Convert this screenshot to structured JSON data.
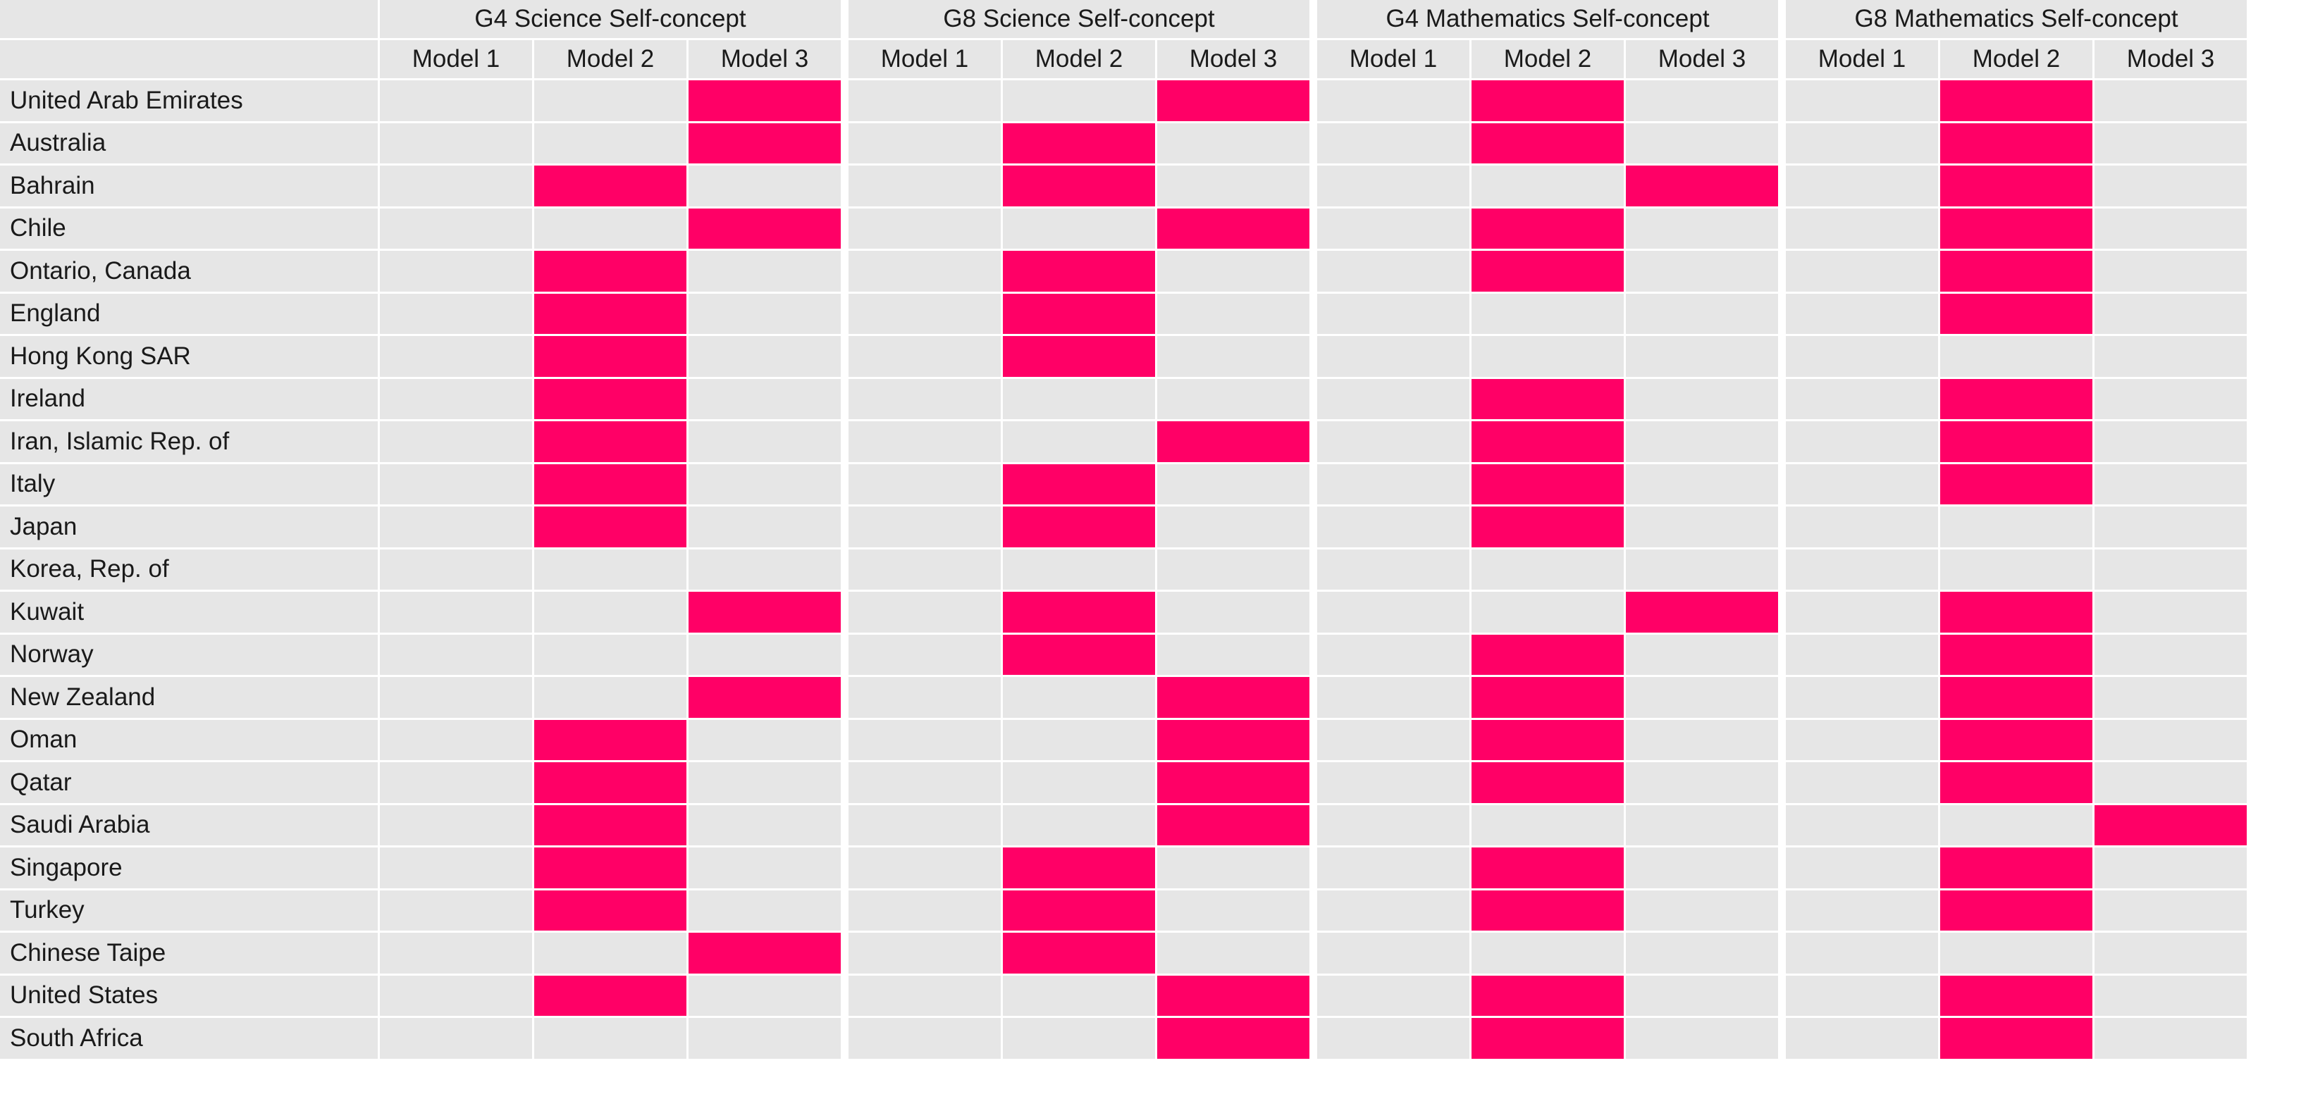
{
  "chart_data": {
    "type": "table",
    "title": "",
    "value_meaning": "highlighted = 1, not highlighted = 0",
    "highlight_color": "#ff0066",
    "background_color": "#e6e6e6",
    "groups": [
      {
        "label": "G4 Science Self-concept",
        "models": [
          "Model 1",
          "Model 2",
          "Model 3"
        ]
      },
      {
        "label": "G8 Science Self-concept",
        "models": [
          "Model 1",
          "Model 2",
          "Model 3"
        ]
      },
      {
        "label": "G4 Mathematics Self-concept",
        "models": [
          "Model 1",
          "Model 2",
          "Model 3"
        ]
      },
      {
        "label": "G8 Mathematics Self-concept",
        "models": [
          "Model 1",
          "Model 2",
          "Model 3"
        ]
      }
    ],
    "rows": [
      {
        "country": "United Arab Emirates",
        "values": [
          0,
          0,
          1,
          0,
          0,
          1,
          0,
          1,
          0,
          0,
          1,
          0
        ]
      },
      {
        "country": "Australia",
        "values": [
          0,
          0,
          1,
          0,
          1,
          0,
          0,
          1,
          0,
          0,
          1,
          0
        ]
      },
      {
        "country": "Bahrain",
        "values": [
          0,
          1,
          0,
          0,
          1,
          0,
          0,
          0,
          1,
          0,
          1,
          0
        ]
      },
      {
        "country": "Chile",
        "values": [
          0,
          0,
          1,
          0,
          0,
          1,
          0,
          1,
          0,
          0,
          1,
          0
        ]
      },
      {
        "country": "Ontario, Canada",
        "values": [
          0,
          1,
          0,
          0,
          1,
          0,
          0,
          1,
          0,
          0,
          1,
          0
        ]
      },
      {
        "country": "England",
        "values": [
          0,
          1,
          0,
          0,
          1,
          0,
          0,
          0,
          0,
          0,
          1,
          0
        ]
      },
      {
        "country": "Hong Kong SAR",
        "values": [
          0,
          1,
          0,
          0,
          1,
          0,
          0,
          0,
          0,
          0,
          0,
          0
        ]
      },
      {
        "country": "Ireland",
        "values": [
          0,
          1,
          0,
          0,
          0,
          0,
          0,
          1,
          0,
          0,
          1,
          0
        ]
      },
      {
        "country": "Iran, Islamic Rep. of",
        "values": [
          0,
          1,
          0,
          0,
          0,
          1,
          0,
          1,
          0,
          0,
          1,
          0
        ]
      },
      {
        "country": "Italy",
        "values": [
          0,
          1,
          0,
          0,
          1,
          0,
          0,
          1,
          0,
          0,
          1,
          0
        ]
      },
      {
        "country": "Japan",
        "values": [
          0,
          1,
          0,
          0,
          1,
          0,
          0,
          1,
          0,
          0,
          0,
          0
        ]
      },
      {
        "country": "Korea, Rep. of",
        "values": [
          0,
          0,
          0,
          0,
          0,
          0,
          0,
          0,
          0,
          0,
          0,
          0
        ]
      },
      {
        "country": "Kuwait",
        "values": [
          0,
          0,
          1,
          0,
          1,
          0,
          0,
          0,
          1,
          0,
          1,
          0
        ]
      },
      {
        "country": "Norway",
        "values": [
          0,
          0,
          0,
          0,
          1,
          0,
          0,
          1,
          0,
          0,
          1,
          0
        ]
      },
      {
        "country": "New Zealand",
        "values": [
          0,
          0,
          1,
          0,
          0,
          1,
          0,
          1,
          0,
          0,
          1,
          0
        ]
      },
      {
        "country": "Oman",
        "values": [
          0,
          1,
          0,
          0,
          0,
          1,
          0,
          1,
          0,
          0,
          1,
          0
        ]
      },
      {
        "country": "Qatar",
        "values": [
          0,
          1,
          0,
          0,
          0,
          1,
          0,
          1,
          0,
          0,
          1,
          0
        ]
      },
      {
        "country": "Saudi Arabia",
        "values": [
          0,
          1,
          0,
          0,
          0,
          1,
          0,
          0,
          0,
          0,
          0,
          1
        ]
      },
      {
        "country": "Singapore",
        "values": [
          0,
          1,
          0,
          0,
          1,
          0,
          0,
          1,
          0,
          0,
          1,
          0
        ]
      },
      {
        "country": "Turkey",
        "values": [
          0,
          1,
          0,
          0,
          1,
          0,
          0,
          1,
          0,
          0,
          1,
          0
        ]
      },
      {
        "country": "Chinese Taipe",
        "values": [
          0,
          0,
          1,
          0,
          1,
          0,
          0,
          0,
          0,
          0,
          0,
          0
        ]
      },
      {
        "country": "United States",
        "values": [
          0,
          1,
          0,
          0,
          0,
          1,
          0,
          1,
          0,
          0,
          1,
          0
        ]
      },
      {
        "country": "South Africa",
        "values": [
          0,
          0,
          0,
          0,
          0,
          1,
          0,
          1,
          0,
          0,
          1,
          0
        ]
      }
    ]
  }
}
